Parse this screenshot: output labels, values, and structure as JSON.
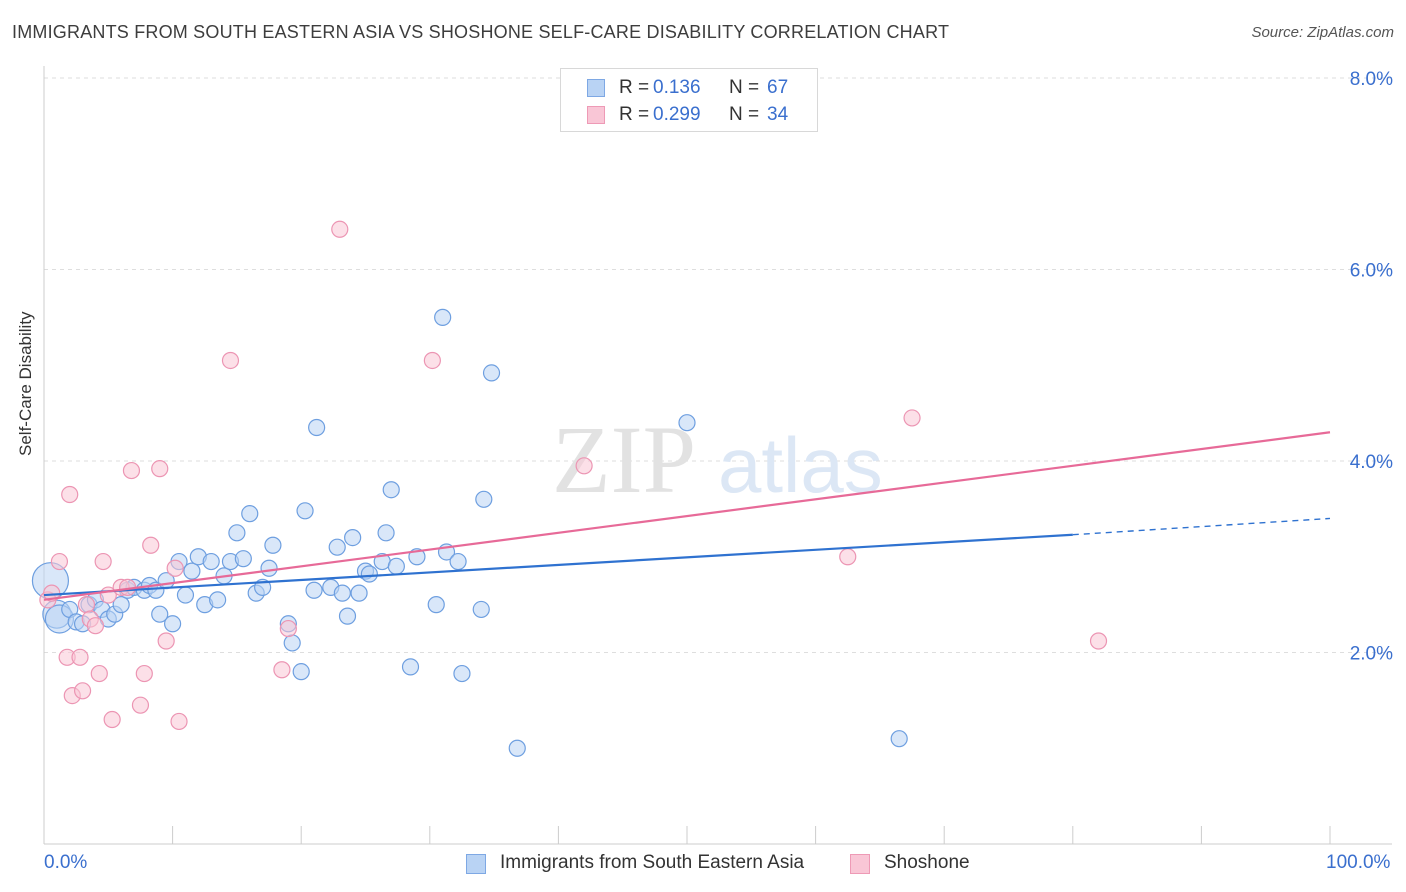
{
  "title": "IMMIGRANTS FROM SOUTH EASTERN ASIA VS SHOSHONE SELF-CARE DISABILITY CORRELATION CHART",
  "source": "Source: ZipAtlas.com",
  "legend": {
    "r_label": "R =",
    "n_label": "N =",
    "rows": [
      {
        "r": "0.136",
        "n": "67"
      },
      {
        "r": "0.299",
        "n": "34"
      }
    ]
  },
  "watermark": {
    "zip": "ZIP",
    "atlas": "atlas"
  },
  "chart_data": {
    "type": "scatter",
    "title": "IMMIGRANTS FROM SOUTH EASTERN ASIA VS SHOSHONE SELF-CARE DISABILITY CORRELATION CHART",
    "xlabel": "",
    "ylabel": "Self-Care Disability",
    "xlim": [
      0,
      100
    ],
    "ylim": [
      0,
      8.0
    ],
    "x_tick_labels": [
      "0.0%",
      "100.0%"
    ],
    "y_tick_labels": [
      "2.0%",
      "4.0%",
      "6.0%",
      "8.0%"
    ],
    "y_ticks": [
      2.0,
      4.0,
      6.0,
      8.0
    ],
    "grid": true,
    "legend_position": "top-center",
    "series": [
      {
        "name": "Immigrants from South Eastern Asia",
        "color": "#8ab4e8",
        "line_color": "#2f72d0",
        "trend": {
          "x0": 0,
          "y0": 2.6,
          "x1": 80,
          "y1": 3.23,
          "dashed_to": 100,
          "dashed_y": 3.4
        },
        "points": [
          [
            0.5,
            2.75
          ],
          [
            1,
            2.4
          ],
          [
            1.2,
            2.35
          ],
          [
            2,
            2.45
          ],
          [
            2.5,
            2.32
          ],
          [
            3,
            2.3
          ],
          [
            3.5,
            2.5
          ],
          [
            4,
            2.55
          ],
          [
            4.5,
            2.45
          ],
          [
            5,
            2.35
          ],
          [
            5.5,
            2.4
          ],
          [
            6,
            2.5
          ],
          [
            6.5,
            2.65
          ],
          [
            7,
            2.68
          ],
          [
            7.8,
            2.65
          ],
          [
            8.2,
            2.7
          ],
          [
            8.7,
            2.65
          ],
          [
            9,
            2.4
          ],
          [
            9.5,
            2.75
          ],
          [
            10,
            2.3
          ],
          [
            10.5,
            2.95
          ],
          [
            11,
            2.6
          ],
          [
            11.5,
            2.85
          ],
          [
            12,
            3.0
          ],
          [
            12.5,
            2.5
          ],
          [
            13,
            2.95
          ],
          [
            13.5,
            2.55
          ],
          [
            14,
            2.8
          ],
          [
            14.5,
            2.95
          ],
          [
            15,
            3.25
          ],
          [
            15.5,
            2.98
          ],
          [
            16,
            3.45
          ],
          [
            16.5,
            2.62
          ],
          [
            17,
            2.68
          ],
          [
            17.5,
            2.88
          ],
          [
            17.8,
            3.12
          ],
          [
            19,
            2.3
          ],
          [
            19.3,
            2.1
          ],
          [
            20,
            1.8
          ],
          [
            20.3,
            3.48
          ],
          [
            21,
            2.65
          ],
          [
            21.2,
            4.35
          ],
          [
            22.3,
            2.68
          ],
          [
            22.8,
            3.1
          ],
          [
            23.2,
            2.62
          ],
          [
            23.6,
            2.38
          ],
          [
            24,
            3.2
          ],
          [
            24.5,
            2.62
          ],
          [
            25,
            2.85
          ],
          [
            25.3,
            2.82
          ],
          [
            26.3,
            2.95
          ],
          [
            26.6,
            3.25
          ],
          [
            27,
            3.7
          ],
          [
            27.4,
            2.9
          ],
          [
            28.5,
            1.85
          ],
          [
            29,
            3.0
          ],
          [
            30.5,
            2.5
          ],
          [
            31,
            5.5
          ],
          [
            31.3,
            3.05
          ],
          [
            32.2,
            2.95
          ],
          [
            32.5,
            1.78
          ],
          [
            34,
            2.45
          ],
          [
            34.2,
            3.6
          ],
          [
            34.8,
            4.92
          ],
          [
            36.8,
            1.0
          ],
          [
            50,
            4.4
          ],
          [
            66.5,
            1.1
          ]
        ]
      },
      {
        "name": "Shoshone",
        "color": "#f4a8c0",
        "line_color": "#e76a98",
        "trend": {
          "x0": 0,
          "y0": 2.55,
          "x1": 100,
          "y1": 4.3
        },
        "points": [
          [
            0.3,
            2.55
          ],
          [
            0.6,
            2.62
          ],
          [
            1.2,
            2.95
          ],
          [
            1.8,
            1.95
          ],
          [
            2,
            3.65
          ],
          [
            2.2,
            1.55
          ],
          [
            2.8,
            1.95
          ],
          [
            3,
            1.6
          ],
          [
            3.3,
            2.5
          ],
          [
            3.6,
            2.35
          ],
          [
            4,
            2.28
          ],
          [
            4.3,
            1.78
          ],
          [
            4.6,
            2.95
          ],
          [
            5,
            2.6
          ],
          [
            5.3,
            1.3
          ],
          [
            6,
            2.68
          ],
          [
            6.5,
            2.68
          ],
          [
            6.8,
            3.9
          ],
          [
            7.5,
            1.45
          ],
          [
            7.8,
            1.78
          ],
          [
            8.3,
            3.12
          ],
          [
            9,
            3.92
          ],
          [
            9.5,
            2.12
          ],
          [
            10.2,
            2.88
          ],
          [
            10.5,
            1.28
          ],
          [
            14.5,
            5.05
          ],
          [
            18.5,
            1.82
          ],
          [
            19,
            2.25
          ],
          [
            23,
            6.42
          ],
          [
            30.2,
            5.05
          ],
          [
            42,
            3.95
          ],
          [
            62.5,
            3.0
          ],
          [
            67.5,
            4.45
          ],
          [
            82,
            2.12
          ]
        ]
      }
    ]
  },
  "axis": {
    "x_min_label": "0.0%",
    "x_max_label": "100.0%"
  },
  "bottom_legend": {
    "items": [
      {
        "label": "Immigrants from South Eastern Asia"
      },
      {
        "label": "Shoshone"
      }
    ]
  }
}
